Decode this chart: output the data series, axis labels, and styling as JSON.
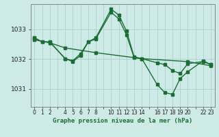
{
  "bg_color": "#cdeae6",
  "grid_color": "#b0d4cf",
  "line_color": "#1a6e35",
  "title": "Graphe pression niveau de la mer (hPa)",
  "xlim": [
    -0.5,
    23.5
  ],
  "ylim": [
    1030.4,
    1033.85
  ],
  "yticks": [
    1031,
    1032,
    1033
  ],
  "xtick_labels": [
    "0",
    "1",
    "2",
    "",
    "4",
    "5",
    "6",
    "7",
    "8",
    "",
    "10",
    "11",
    "12",
    "13",
    "14",
    "",
    "16",
    "17",
    "18",
    "19",
    "20",
    "",
    "22",
    "23"
  ],
  "series1_x": [
    0,
    1,
    2,
    4,
    5,
    6,
    7,
    8,
    10,
    11,
    12,
    13,
    14,
    16,
    17,
    18,
    19,
    20,
    22,
    23
  ],
  "series1_y": [
    1032.72,
    1032.58,
    1032.58,
    1032.02,
    1031.92,
    1032.12,
    1032.58,
    1032.68,
    1033.58,
    1033.35,
    1032.82,
    1032.05,
    1032.02,
    1031.88,
    1031.82,
    1031.62,
    1031.52,
    1031.85,
    1031.92,
    1031.82
  ],
  "series2_x": [
    0,
    1,
    2,
    4,
    5,
    6,
    7,
    8,
    10,
    11,
    12,
    13,
    14,
    16,
    17,
    18,
    19,
    20,
    22,
    23
  ],
  "series2_y": [
    1032.72,
    1032.58,
    1032.58,
    1032.02,
    1031.95,
    1032.18,
    1032.58,
    1032.72,
    1033.68,
    1033.48,
    1032.95,
    1032.08,
    1032.02,
    1031.15,
    1030.88,
    1030.82,
    1031.35,
    1031.58,
    1031.95,
    1031.82
  ],
  "series3_x": [
    0,
    2,
    4,
    8,
    14,
    20,
    23
  ],
  "series3_y": [
    1032.65,
    1032.55,
    1032.38,
    1032.22,
    1032.02,
    1031.92,
    1031.78
  ]
}
